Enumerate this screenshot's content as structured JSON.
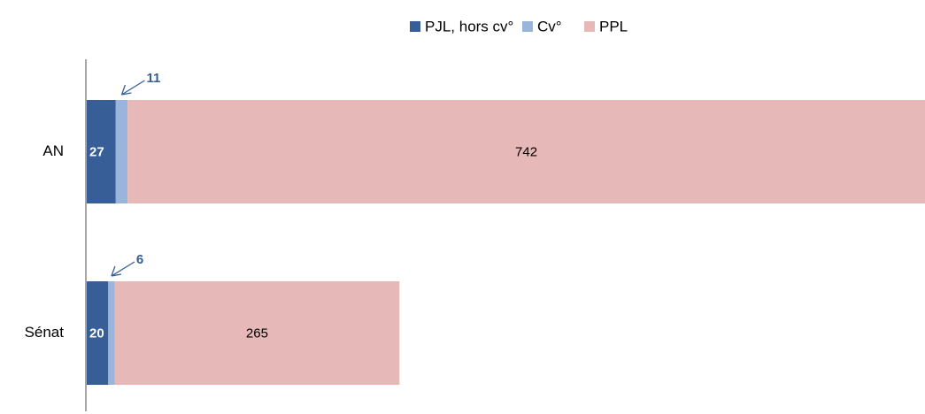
{
  "chart_data": {
    "type": "stacked-barh",
    "categories": [
      "AN",
      "Sénat"
    ],
    "series": [
      {
        "name": "PJL, hors cv°",
        "color": "#375e97",
        "values": [
          27,
          20
        ]
      },
      {
        "name": "Cv°",
        "color": "#9ab5db",
        "values": [
          11,
          6
        ]
      },
      {
        "name": "PPL",
        "color": "#e6b8b7",
        "values": [
          742,
          265
        ]
      }
    ]
  }
}
